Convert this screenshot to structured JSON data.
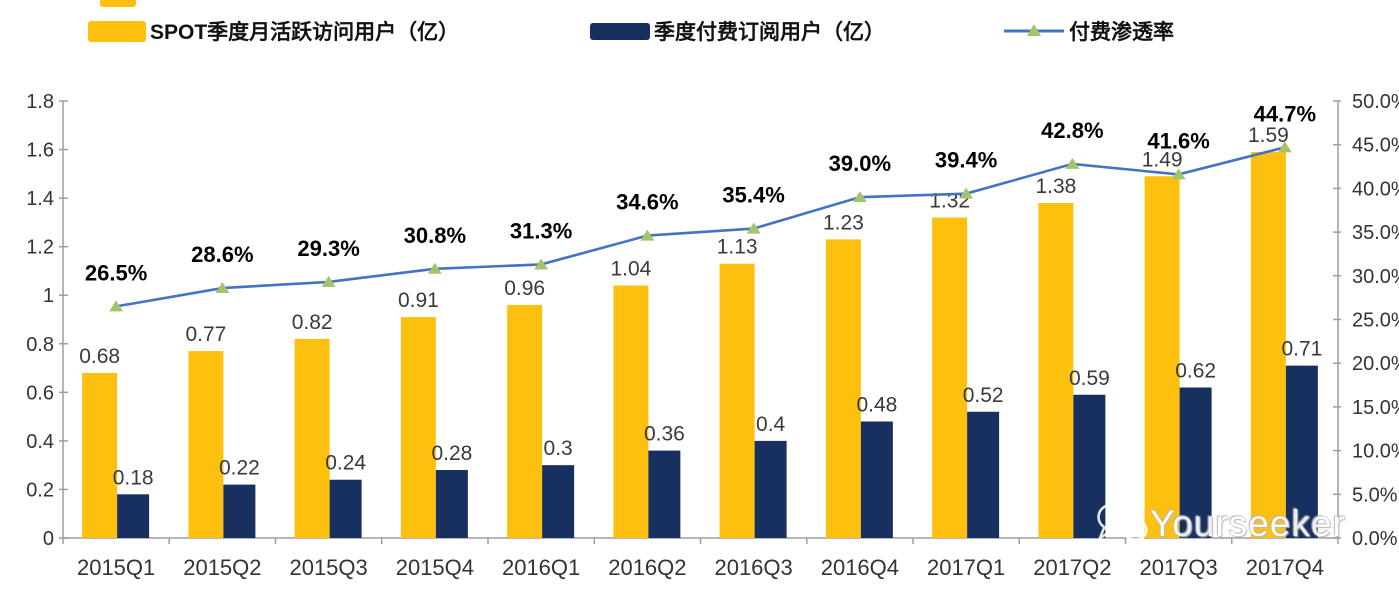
{
  "legend": {
    "items": [
      {
        "label": "SPOT季度月活跃访问用户（亿）",
        "swatch": "bar",
        "color": "#FDC00F"
      },
      {
        "label": "季度付费订阅用户（亿）",
        "swatch": "bar",
        "color": "#18305F"
      },
      {
        "label": "付费渗透率",
        "swatch": "line-triangle-marker",
        "color": "#4472C4",
        "marker_color": "#A6C36A"
      }
    ]
  },
  "chart_data": {
    "type": "bar+line combo",
    "categories": [
      "2015Q1",
      "2015Q2",
      "2015Q3",
      "2015Q4",
      "2016Q1",
      "2016Q2",
      "2016Q3",
      "2016Q4",
      "2017Q1",
      "2017Q2",
      "2017Q3",
      "2017Q4"
    ],
    "series": [
      {
        "name": "SPOT季度月活跃访问用户（亿）",
        "type": "bar",
        "axis": "left",
        "color": "#FDC00F",
        "values": [
          0.68,
          0.77,
          0.82,
          0.91,
          0.96,
          1.04,
          1.13,
          1.23,
          1.32,
          1.38,
          1.49,
          1.59
        ],
        "labels": [
          "0.68",
          "0.77",
          "0.82",
          "0.91",
          "0.96",
          "1.04",
          "1.13",
          "1.23",
          "1.32",
          "1.38",
          "1.49",
          "1.59"
        ]
      },
      {
        "name": "季度付费订阅用户（亿）",
        "type": "bar",
        "axis": "left",
        "color": "#18305F",
        "values": [
          0.18,
          0.22,
          0.24,
          0.28,
          0.3,
          0.36,
          0.4,
          0.48,
          0.52,
          0.59,
          0.62,
          0.71
        ],
        "labels": [
          "0.18",
          "0.22",
          "0.24",
          "0.28",
          "0.3",
          "0.36",
          "0.4",
          "0.48",
          "0.52",
          "0.59",
          "0.62",
          "0.71"
        ]
      },
      {
        "name": "付费渗透率",
        "type": "line",
        "axis": "right",
        "color": "#4472C4",
        "marker": "triangle",
        "marker_color": "#A6C36A",
        "values": [
          26.5,
          28.6,
          29.3,
          30.8,
          31.3,
          34.6,
          35.4,
          39.0,
          39.4,
          42.8,
          41.6,
          44.7
        ],
        "labels": [
          "26.5%",
          "28.6%",
          "29.3%",
          "30.8%",
          "31.3%",
          "34.6%",
          "35.4%",
          "39.0%",
          "39.4%",
          "42.8%",
          "41.6%",
          "44.7%"
        ]
      }
    ],
    "left_axis": {
      "min": 0,
      "max": 1.8,
      "ticks": [
        "0",
        "0.2",
        "0.4",
        "0.6",
        "0.8",
        "1",
        "1.2",
        "1.4",
        "1.6",
        "1.8"
      ]
    },
    "right_axis": {
      "min": 0,
      "max": 50,
      "ticks": [
        "0.0%",
        "5.0%",
        "10.0%",
        "15.0%",
        "20.0%",
        "25.0%",
        "30.0%",
        "35.0%",
        "40.0%",
        "45.0%",
        "50.0%"
      ]
    },
    "grid": false,
    "legend_position": "top",
    "axis_color": "#9E9E9E",
    "tick_label_color": "#333333",
    "bar_label_color": "#3a3a3a",
    "percent_label_color": "#000000"
  },
  "watermark": {
    "text": "Yourseeker",
    "icon": "wechat-icon"
  }
}
